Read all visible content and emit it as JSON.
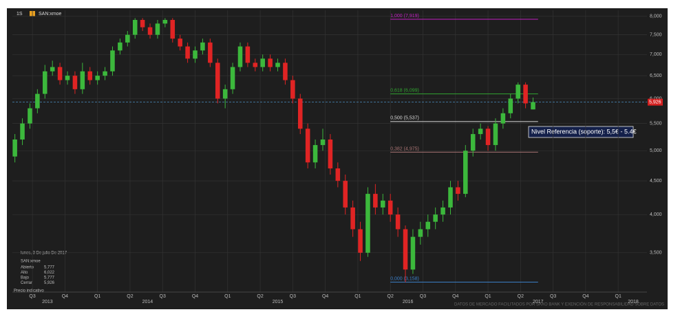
{
  "header": {
    "interval": "1S",
    "symbol": "SAN:xmoe"
  },
  "chart_data": {
    "type": "candlestick",
    "log_scale": true,
    "grid": true,
    "up_color": "#3cb83c",
    "down_color": "#e02424",
    "ylim": [
      3050,
      8170
    ],
    "yticks": [
      {
        "value": 3500,
        "label": "3,500"
      },
      {
        "value": 4000,
        "label": "4,000"
      },
      {
        "value": 4500,
        "label": "4,500"
      },
      {
        "value": 5000,
        "label": "5,000"
      },
      {
        "value": 5500,
        "label": "5,500"
      },
      {
        "value": 6000,
        "label": "6,000"
      },
      {
        "value": 6500,
        "label": "6,500"
      },
      {
        "value": 7000,
        "label": "7,000"
      },
      {
        "value": 7500,
        "label": "7,500"
      },
      {
        "value": 8000,
        "label": "8,000"
      }
    ],
    "xlim": [
      0,
      253.5
    ],
    "xticks": [
      {
        "value": 8,
        "label": "Q3"
      },
      {
        "value": 21,
        "label": "Q4"
      },
      {
        "value": 34,
        "label": "Q1"
      },
      {
        "value": 47,
        "label": "Q2"
      },
      {
        "value": 60,
        "label": "Q3"
      },
      {
        "value": 73,
        "label": "Q4"
      },
      {
        "value": 86,
        "label": "Q1"
      },
      {
        "value": 99,
        "label": "Q2"
      },
      {
        "value": 112,
        "label": "Q3"
      },
      {
        "value": 125,
        "label": "Q4"
      },
      {
        "value": 138,
        "label": "Q1"
      },
      {
        "value": 151,
        "label": "Q2"
      },
      {
        "value": 164,
        "label": "Q3"
      },
      {
        "value": 177,
        "label": "Q4"
      },
      {
        "value": 190,
        "label": "Q1"
      },
      {
        "value": 203,
        "label": "Q2"
      },
      {
        "value": 216,
        "label": "Q3"
      },
      {
        "value": 229,
        "label": "Q4"
      },
      {
        "value": 242,
        "label": "Q1"
      }
    ],
    "year_ticks": [
      {
        "value": 14,
        "label": "2013"
      },
      {
        "value": 54,
        "label": "2014"
      },
      {
        "value": 106,
        "label": "2015"
      },
      {
        "value": 158,
        "label": "2016"
      },
      {
        "value": 210,
        "label": "2017"
      },
      {
        "value": 248,
        "label": "2018"
      }
    ],
    "x": [
      1,
      4,
      7,
      10,
      13,
      16,
      19,
      22,
      25,
      28,
      31,
      34,
      37,
      40,
      43,
      46,
      49,
      52,
      55,
      58,
      61,
      64,
      67,
      70,
      73,
      76,
      79,
      82,
      85,
      88,
      91,
      94,
      97,
      100,
      103,
      106,
      109,
      112,
      115,
      118,
      121,
      124,
      127,
      130,
      133,
      136,
      139,
      142,
      145,
      148,
      151,
      154,
      157,
      160,
      163,
      166,
      169,
      172,
      175,
      178,
      181,
      184,
      187,
      190,
      193,
      196,
      199,
      202,
      205,
      208
    ],
    "ohlc": [
      [
        4900,
        5300,
        4800,
        5200
      ],
      [
        5200,
        5600,
        5100,
        5500
      ],
      [
        5500,
        5900,
        5400,
        5800
      ],
      [
        5800,
        6200,
        5700,
        6100
      ],
      [
        6100,
        6750,
        6000,
        6600
      ],
      [
        6600,
        6850,
        6500,
        6700
      ],
      [
        6700,
        6800,
        6300,
        6400
      ],
      [
        6400,
        6600,
        6300,
        6500
      ],
      [
        6500,
        6600,
        6100,
        6200
      ],
      [
        6200,
        6800,
        6100,
        6600
      ],
      [
        6600,
        6700,
        6300,
        6400
      ],
      [
        6400,
        6600,
        6300,
        6500
      ],
      [
        6500,
        6700,
        6400,
        6600
      ],
      [
        6600,
        7200,
        6500,
        7100
      ],
      [
        7100,
        7400,
        7000,
        7300
      ],
      [
        7300,
        7600,
        7200,
        7500
      ],
      [
        7500,
        7950,
        7400,
        7900
      ],
      [
        7900,
        7950,
        7600,
        7700
      ],
      [
        7700,
        7800,
        7400,
        7500
      ],
      [
        7500,
        7900,
        7400,
        7800
      ],
      [
        7800,
        7950,
        7700,
        7900
      ],
      [
        7900,
        7950,
        7300,
        7400
      ],
      [
        7400,
        7500,
        7100,
        7200
      ],
      [
        7200,
        7300,
        6800,
        6900
      ],
      [
        6900,
        7200,
        6800,
        7100
      ],
      [
        7100,
        7400,
        7000,
        7300
      ],
      [
        7300,
        7400,
        6700,
        6800
      ],
      [
        6800,
        6900,
        5900,
        6000
      ],
      [
        6000,
        6300,
        5800,
        6200
      ],
      [
        6200,
        6800,
        6100,
        6700
      ],
      [
        6700,
        7300,
        6600,
        7200
      ],
      [
        7200,
        7300,
        6700,
        6800
      ],
      [
        6800,
        6900,
        6600,
        6700
      ],
      [
        6700,
        7000,
        6600,
        6900
      ],
      [
        6900,
        7000,
        6600,
        6700
      ],
      [
        6700,
        6900,
        6600,
        6800
      ],
      [
        6800,
        6900,
        6300,
        6400
      ],
      [
        6400,
        6500,
        5900,
        6000
      ],
      [
        6000,
        6100,
        5300,
        5400
      ],
      [
        5400,
        5500,
        4700,
        4800
      ],
      [
        4800,
        5200,
        4700,
        5100
      ],
      [
        5100,
        5400,
        5000,
        5200
      ],
      [
        5200,
        5300,
        4600,
        4700
      ],
      [
        4700,
        4800,
        4400,
        4500
      ],
      [
        4500,
        4600,
        4000,
        4100
      ],
      [
        4100,
        4200,
        3700,
        3800
      ],
      [
        3800,
        3900,
        3400,
        3500
      ],
      [
        3500,
        4400,
        3450,
        4300
      ],
      [
        4300,
        4450,
        4000,
        4100
      ],
      [
        4100,
        4300,
        4000,
        4200
      ],
      [
        4200,
        4300,
        3900,
        4000
      ],
      [
        4000,
        4100,
        3700,
        3800
      ],
      [
        3800,
        3850,
        3158,
        3300
      ],
      [
        3300,
        3800,
        3250,
        3700
      ],
      [
        3700,
        3900,
        3600,
        3800
      ],
      [
        3800,
        4000,
        3700,
        3900
      ],
      [
        3900,
        4100,
        3800,
        4000
      ],
      [
        4000,
        4200,
        3900,
        4100
      ],
      [
        4100,
        4500,
        4000,
        4400
      ],
      [
        4400,
        4500,
        4200,
        4300
      ],
      [
        4300,
        5100,
        4250,
        5000
      ],
      [
        5000,
        5400,
        4900,
        5300
      ],
      [
        5300,
        5500,
        5200,
        5400
      ],
      [
        5400,
        5450,
        5000,
        5100
      ],
      [
        5100,
        5600,
        5000,
        5500
      ],
      [
        5500,
        5800,
        5400,
        5700
      ],
      [
        5700,
        6100,
        5600,
        6000
      ],
      [
        6000,
        6350,
        5900,
        6300
      ],
      [
        6300,
        6350,
        5800,
        5900
      ],
      [
        5777,
        6022,
        5777,
        5926
      ]
    ],
    "last_price": {
      "value": 5926,
      "label": "5,926"
    },
    "fib_range": [
      151,
      210
    ],
    "fib_levels": [
      {
        "value": 7919,
        "label": "1,000 (7,919)",
        "color": "#c21fc2"
      },
      {
        "value": 6099,
        "label": "0,618 (6,099)",
        "color": "#31a531"
      },
      {
        "value": 5537,
        "label": "0,500 (5,537)",
        "color": "#d8d8d8"
      },
      {
        "value": 4975,
        "label": "0,382 (4,975)",
        "color": "#a87474"
      },
      {
        "value": 3158,
        "label": "0,000 (3,158)",
        "color": "#3b7fc8"
      }
    ],
    "annotation": "Nivel Referencia (soporte): 5,5€ - 5.4€"
  },
  "info": {
    "date": "lunes, 3 De julio De 2017",
    "symbol": "SAN:xmoe",
    "rows": [
      [
        "Abierto",
        "5,777"
      ],
      [
        "Alto",
        "6,022"
      ],
      [
        "Bajo",
        "5,777"
      ],
      [
        "Cerrar",
        "5,926"
      ]
    ],
    "note": "Precio indicativo"
  },
  "footer": "DATOS DE MERCADO FACILITADOS POR SAXO BANK Y EXENCIÓN DE RESPONSABILIDAD SOBRE DATOS"
}
